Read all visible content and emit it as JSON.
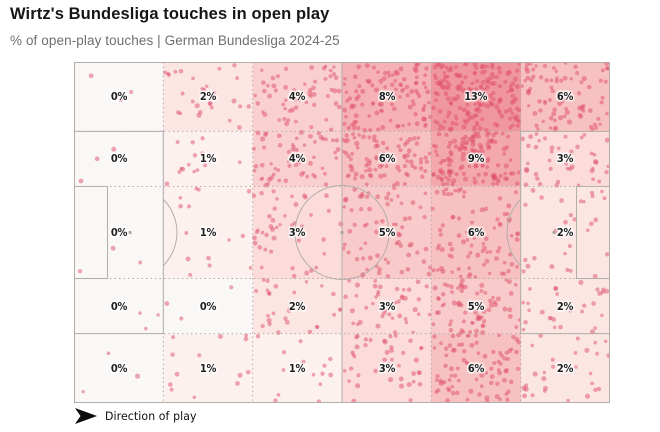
{
  "title": "Wirtz's Bundesliga touches in open play",
  "subtitle": "% of open-play touches | German Bundesliga 2024-25",
  "footer": {
    "label": "Direction of play",
    "arrow_icon": "direction-of-play-arrow"
  },
  "chart_data": {
    "type": "heatmap",
    "title": "Wirtz's Bundesliga touches in open play",
    "subtitle": "% of open-play touches | German Bundesliga 2024-25",
    "description": "Football pitch zone map, attacking left to right, 6 columns x 5 rows; each zone shaded by share of open-play touches with individual touch dots scattered",
    "grid": {
      "cols": 6,
      "rows": 5
    },
    "values_pct": [
      [
        0,
        2,
        4,
        8,
        13,
        6
      ],
      [
        0,
        1,
        4,
        6,
        9,
        3
      ],
      [
        0,
        1,
        3,
        5,
        6,
        2
      ],
      [
        0,
        0,
        2,
        3,
        5,
        2
      ],
      [
        0,
        1,
        1,
        3,
        6,
        2
      ]
    ],
    "labels": [
      [
        "0%",
        "2%",
        "4%",
        "8%",
        "13%",
        "6%"
      ],
      [
        "0%",
        "1%",
        "4%",
        "6%",
        "9%",
        "3%"
      ],
      [
        "0%",
        "1%",
        "3%",
        "5%",
        "6%",
        "2%"
      ],
      [
        "0%",
        "0%",
        "2%",
        "3%",
        "5%",
        "2%"
      ],
      [
        "0%",
        "1%",
        "1%",
        "3%",
        "6%",
        "2%"
      ]
    ],
    "row_boundaries_frac": [
      0,
      0.2035,
      0.365,
      0.635,
      0.7965,
      1
    ],
    "col_boundaries_frac": [
      0,
      0.16667,
      0.33333,
      0.5,
      0.66667,
      0.83333,
      1
    ],
    "color_scale": {
      "0": "#faf8f7",
      "1": "#fdf1ef",
      "2": "#fbe6e4",
      "3": "#fbdcda",
      "4": "#f9d0cf",
      "5": "#f8cac9",
      "6": "#f7c1c1",
      "8": "#f5b1b3",
      "9": "#f3a8ab",
      "13": "#f0979e"
    },
    "dot_color": "#e0506b",
    "dot_opacity": 0.5,
    "dots_per_percent": 14,
    "zero_cell_dots": 3,
    "pitch_line_color": "#b3aeaa",
    "label_color": "#1d1d1d",
    "legend": null
  }
}
